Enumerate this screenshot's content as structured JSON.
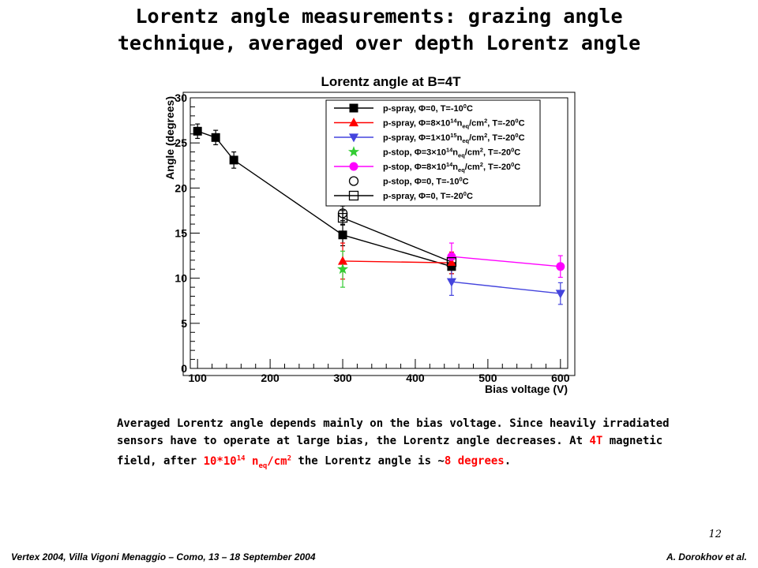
{
  "slide": {
    "title_line1": "Lorentz angle measurements: grazing angle",
    "title_line2": "technique, averaged over depth Lorentz angle",
    "body": {
      "p1": "Averaged Lorentz angle depends mainly on the bias voltage. Since heavily irradiated sensors have to operate at large bias, the Lorentz angle decreases. At ",
      "field": "4T",
      "p2": " magnetic field, after ",
      "fluence_base": "10*10",
      "fluence_exp": "14",
      "fluence_n": " n",
      "fluence_sub": "eq",
      "fluence_unit": "/cm",
      "fluence_unit_exp": "2",
      "p3": " the Lorentz angle is ~",
      "angle": "8 degrees",
      "p4": "."
    },
    "page_number": "12",
    "footer_left": "Vertex 2004, Villa Vigoni  Menaggio – Como, 13 – 18 September 2004",
    "footer_right": "A. Dorokhov et al."
  },
  "chart_data": {
    "type": "scatter",
    "title": "Lorentz angle at B=4T",
    "xlabel": "Bias voltage (V)",
    "ylabel": "Angle (degrees)",
    "xlim": [
      90,
      610
    ],
    "ylim": [
      0,
      30
    ],
    "xticks": [
      100,
      200,
      300,
      400,
      500,
      600
    ],
    "yticks": [
      0,
      5,
      10,
      15,
      20,
      25,
      30
    ],
    "grid": false,
    "legend_position": "top-right",
    "series": [
      {
        "name": "p-spray, Φ=0, T=-10⁰C",
        "legend_label": [
          "p-spray, Φ=0, T=-10",
          "0",
          "C"
        ],
        "marker": "square-filled",
        "color": "#000000",
        "connected": true,
        "x": [
          100,
          125,
          150,
          300,
          450
        ],
        "y": [
          26.3,
          25.6,
          23.1,
          14.8,
          11.3
        ],
        "yerr": [
          0.8,
          0.8,
          0.9,
          1.2,
          0.8
        ]
      },
      {
        "name": "p-spray, Φ=8×10¹⁴n_eq/cm², T=-20⁰C",
        "legend_label": [
          "p-spray, Φ=8×10",
          "14",
          "n",
          "eq",
          "/cm",
          "2",
          ", T=-20",
          "0",
          "C"
        ],
        "marker": "triangle-up",
        "color": "#ff0000",
        "connected": true,
        "x": [
          300,
          450
        ],
        "y": [
          11.9,
          11.7
        ],
        "yerr": [
          2.0,
          1.2
        ]
      },
      {
        "name": "p-spray, Φ=1×10¹⁵n_eq/cm², T=-20⁰C",
        "legend_label": [
          "p-spray, Φ=1×10",
          "15",
          "n",
          "eq",
          "/cm",
          "2",
          ", T=-20",
          "0",
          "C"
        ],
        "marker": "triangle-down",
        "color": "#4444dd",
        "connected": true,
        "x": [
          450,
          600
        ],
        "y": [
          9.6,
          8.3
        ],
        "yerr": [
          1.5,
          1.2
        ]
      },
      {
        "name": "p-stop,  Φ=3×10¹⁴n_eq/cm², T=-20⁰C",
        "legend_label": [
          "p-stop,  Φ=3×10",
          "14",
          "n",
          "eq",
          "/cm",
          "2",
          ", T=-20",
          "0",
          "C"
        ],
        "marker": "star",
        "color": "#33cc33",
        "connected": false,
        "x": [
          300
        ],
        "y": [
          11.0
        ],
        "yerr": [
          2.0
        ]
      },
      {
        "name": "p-stop,  Φ=8×10¹⁴n_eq/cm², T=-20⁰C",
        "legend_label": [
          "p-stop,  Φ=8×10",
          "14",
          "n",
          "eq",
          "/cm",
          "2",
          ", T=-20",
          "0",
          "C"
        ],
        "marker": "circle-filled",
        "color": "#ff00ff",
        "connected": true,
        "x": [
          450,
          600
        ],
        "y": [
          12.4,
          11.3
        ],
        "yerr": [
          1.5,
          1.2
        ]
      },
      {
        "name": "p-stop,  Φ=0, T=-10⁰C",
        "legend_label": [
          "p-stop,  Φ=0, T=-10",
          "0",
          "C"
        ],
        "marker": "circle-open",
        "color": "#000000",
        "connected": false,
        "x": [
          300
        ],
        "y": [
          17.2
        ],
        "yerr": [
          0.8
        ]
      },
      {
        "name": "p-spray,  Φ=0, T=-20⁰C",
        "legend_label": [
          "p-spray,  Φ=0, T=-20",
          "0",
          "C"
        ],
        "marker": "square-open",
        "color": "#000000",
        "connected": true,
        "x": [
          300,
          450
        ],
        "y": [
          16.7,
          11.8
        ],
        "yerr": [
          0.8,
          0.7
        ]
      }
    ]
  }
}
